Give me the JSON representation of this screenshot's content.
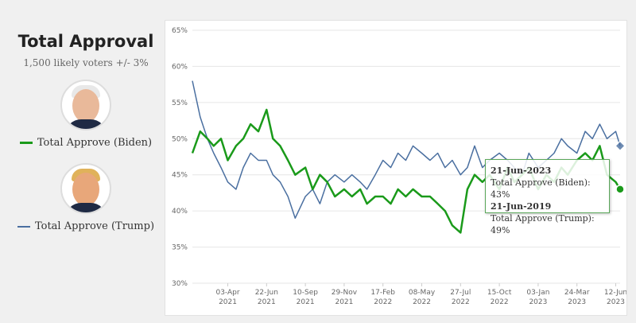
{
  "sidebar": {
    "title": "Total Approval",
    "subtitle": "1,500 likely voters +/- 3%",
    "biden_label": "Total Approve (Biden)",
    "trump_label": "Total Approve (Trump)"
  },
  "colors": {
    "biden": "#1a9a1a",
    "trump": "#4a6fa0"
  },
  "tooltip": {
    "date1": "21-Jun-2023",
    "line1": "Total Approve (Biden): 43%",
    "date2": "21-Jun-2019",
    "line2": "Total Approve (Trump): 49%"
  },
  "chart_data": {
    "type": "line",
    "title": "",
    "xlabel": "",
    "ylabel": "",
    "ylim": [
      30,
      65
    ],
    "yticks": [
      "30%",
      "35%",
      "40%",
      "45%",
      "50%",
      "55%",
      "60%",
      "65%"
    ],
    "xticks": [
      "03-Apr 2021",
      "22-Jun 2021",
      "10-Sep 2021",
      "29-Nov 2021",
      "17-Feb 2022",
      "08-May 2022",
      "27-Jul 2022",
      "15-Oct 2022",
      "03-Jan 2023",
      "24-Mar 2023",
      "12-Jun 2023"
    ],
    "x_range": [
      "2021-01-20",
      "2023-06-21"
    ],
    "grid": true,
    "series": [
      {
        "name": "Total Approve (Biden)",
        "x": [
          "2021-01-20",
          "2021-02-05",
          "2021-02-20",
          "2021-03-05",
          "2021-03-20",
          "2021-04-03",
          "2021-04-20",
          "2021-05-05",
          "2021-05-20",
          "2021-06-05",
          "2021-06-22",
          "2021-07-05",
          "2021-07-20",
          "2021-08-05",
          "2021-08-20",
          "2021-09-10",
          "2021-09-25",
          "2021-10-10",
          "2021-10-25",
          "2021-11-10",
          "2021-11-29",
          "2021-12-15",
          "2022-01-01",
          "2022-01-15",
          "2022-02-01",
          "2022-02-17",
          "2022-03-05",
          "2022-03-20",
          "2022-04-05",
          "2022-04-20",
          "2022-05-08",
          "2022-05-25",
          "2022-06-10",
          "2022-06-25",
          "2022-07-10",
          "2022-07-27",
          "2022-08-10",
          "2022-08-25",
          "2022-09-10",
          "2022-09-25",
          "2022-10-15",
          "2022-11-01",
          "2022-11-15",
          "2022-12-01",
          "2022-12-15",
          "2023-01-03",
          "2023-01-20",
          "2023-02-05",
          "2023-02-20",
          "2023-03-05",
          "2023-03-24",
          "2023-04-10",
          "2023-04-25",
          "2023-05-10",
          "2023-05-25",
          "2023-06-12",
          "2023-06-21"
        ],
        "values": [
          48,
          51,
          50,
          49,
          50,
          47,
          49,
          50,
          52,
          51,
          54,
          50,
          49,
          47,
          45,
          46,
          43,
          45,
          44,
          42,
          43,
          42,
          43,
          41,
          42,
          42,
          41,
          43,
          42,
          43,
          42,
          42,
          41,
          40,
          38,
          37,
          43,
          45,
          44,
          45,
          43,
          46,
          44,
          45,
          46,
          43,
          45,
          44,
          46,
          45,
          47,
          48,
          47,
          49,
          45,
          44,
          43
        ]
      },
      {
        "name": "Total Approve (Trump)",
        "x": [
          "2021-01-20",
          "2021-02-05",
          "2021-02-20",
          "2021-03-05",
          "2021-03-20",
          "2021-04-03",
          "2021-04-20",
          "2021-05-05",
          "2021-05-20",
          "2021-06-05",
          "2021-06-22",
          "2021-07-05",
          "2021-07-20",
          "2021-08-05",
          "2021-08-20",
          "2021-09-10",
          "2021-09-25",
          "2021-10-10",
          "2021-10-25",
          "2021-11-10",
          "2021-11-29",
          "2021-12-15",
          "2022-01-01",
          "2022-01-15",
          "2022-02-01",
          "2022-02-17",
          "2022-03-05",
          "2022-03-20",
          "2022-04-05",
          "2022-04-20",
          "2022-05-08",
          "2022-05-25",
          "2022-06-10",
          "2022-06-25",
          "2022-07-10",
          "2022-07-27",
          "2022-08-10",
          "2022-08-25",
          "2022-09-10",
          "2022-09-25",
          "2022-10-15",
          "2022-11-01",
          "2022-11-15",
          "2022-12-01",
          "2022-12-15",
          "2023-01-03",
          "2023-01-20",
          "2023-02-05",
          "2023-02-20",
          "2023-03-05",
          "2023-03-24",
          "2023-04-10",
          "2023-04-25",
          "2023-05-10",
          "2023-05-25",
          "2023-06-12",
          "2023-06-21"
        ],
        "values": [
          58,
          53,
          50,
          48,
          46,
          44,
          43,
          46,
          48,
          47,
          47,
          45,
          44,
          42,
          39,
          42,
          43,
          41,
          44,
          45,
          44,
          45,
          44,
          43,
          45,
          47,
          46,
          48,
          47,
          49,
          48,
          47,
          48,
          46,
          47,
          45,
          46,
          49,
          46,
          47,
          48,
          47,
          46,
          45,
          48,
          46,
          47,
          48,
          50,
          49,
          48,
          51,
          50,
          52,
          50,
          51,
          49
        ]
      }
    ]
  }
}
